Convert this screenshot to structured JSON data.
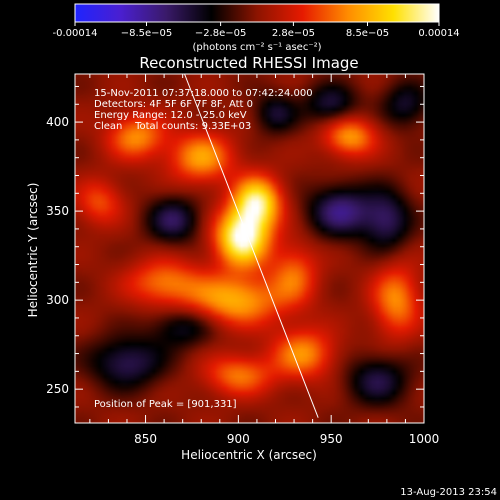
{
  "chart_data": {
    "type": "heatmap",
    "title": "Reconstructed RHESSI Image",
    "xlabel": "Heliocentric X (arcsec)",
    "ylabel": "Heliocentric Y (arcsec)",
    "xlim": [
      812,
      1000
    ],
    "ylim": [
      231,
      427
    ],
    "x_ticks": [
      850,
      900,
      950,
      1000
    ],
    "y_ticks": [
      250,
      300,
      350,
      400
    ],
    "x_tick_labels": [
      "850",
      "900",
      "950",
      "1000"
    ],
    "y_tick_labels": [
      "250",
      "300",
      "350",
      "400"
    ],
    "colorbar": {
      "range": [
        -0.00014,
        0.00014
      ],
      "tick_values": [
        -0.00014,
        -8.5e-05,
        -2.8e-05,
        2.8e-05,
        8.5e-05,
        0.00014
      ],
      "tick_labels": [
        "-0.00014",
        "−8.5e−05",
        "−2.8e−05",
        "2.8e−05",
        "8.5e−05",
        "0.00014"
      ],
      "unit_label": "(photons cm⁻² s⁻¹ asec⁻²)",
      "colors": [
        "#1f24ff",
        "#4a1fd0",
        "#3a1a6a",
        "#000000",
        "#8c1400",
        "#e61a00",
        "#ff8c00",
        "#ffe000",
        "#ffffff"
      ]
    },
    "info_lines": [
      "15-Nov-2011 07:37:18.000 to 07:42:24.000",
      "Detectors: 4F 5F 6F 7F 8F, Att 0",
      "Energy Range: 12.0 - 25.0 keV",
      "Clean    Total counts: 9.33E+03"
    ],
    "peak_label": "Position of Peak = [901,331]",
    "peak": {
      "x": 901,
      "y": 331
    },
    "limb_line": [
      {
        "x": 871,
        "y": 427
      },
      {
        "x": 943,
        "y": 234
      }
    ],
    "sources": [
      {
        "x": 902,
        "y": 335,
        "amp": 1.0,
        "sx": 10,
        "sy": 11
      },
      {
        "x": 910,
        "y": 355,
        "amp": 0.85,
        "sx": 9,
        "sy": 10
      },
      {
        "x": 880,
        "y": 380,
        "amp": 0.55,
        "sx": 12,
        "sy": 10
      },
      {
        "x": 845,
        "y": 392,
        "amp": 0.5,
        "sx": 11,
        "sy": 9
      },
      {
        "x": 898,
        "y": 300,
        "amp": 0.6,
        "sx": 18,
        "sy": 10
      },
      {
        "x": 860,
        "y": 310,
        "amp": 0.45,
        "sx": 14,
        "sy": 9
      },
      {
        "x": 930,
        "y": 315,
        "amp": 0.4,
        "sx": 9,
        "sy": 12
      },
      {
        "x": 960,
        "y": 392,
        "amp": 0.55,
        "sx": 10,
        "sy": 8
      },
      {
        "x": 935,
        "y": 270,
        "amp": 0.5,
        "sx": 12,
        "sy": 10
      },
      {
        "x": 985,
        "y": 300,
        "amp": 0.5,
        "sx": 9,
        "sy": 14
      },
      {
        "x": 900,
        "y": 258,
        "amp": 0.45,
        "sx": 13,
        "sy": 8
      },
      {
        "x": 825,
        "y": 355,
        "amp": 0.35,
        "sx": 9,
        "sy": 9
      },
      {
        "x": 955,
        "y": 350,
        "amp": -0.55,
        "sx": 12,
        "sy": 10
      },
      {
        "x": 865,
        "y": 345,
        "amp": -0.45,
        "sx": 10,
        "sy": 9
      },
      {
        "x": 975,
        "y": 255,
        "amp": -0.4,
        "sx": 12,
        "sy": 10
      },
      {
        "x": 840,
        "y": 265,
        "amp": -0.45,
        "sx": 14,
        "sy": 10
      },
      {
        "x": 980,
        "y": 345,
        "amp": -0.45,
        "sx": 9,
        "sy": 12
      },
      {
        "x": 990,
        "y": 410,
        "amp": -0.35,
        "sx": 9,
        "sy": 9
      },
      {
        "x": 950,
        "y": 410,
        "amp": -0.4,
        "sx": 10,
        "sy": 8
      },
      {
        "x": 920,
        "y": 405,
        "amp": -0.35,
        "sx": 8,
        "sy": 8
      },
      {
        "x": 870,
        "y": 285,
        "amp": -0.35,
        "sx": 12,
        "sy": 8
      }
    ]
  },
  "footer": {
    "timestamp": "13-Aug-2013 23:54"
  }
}
